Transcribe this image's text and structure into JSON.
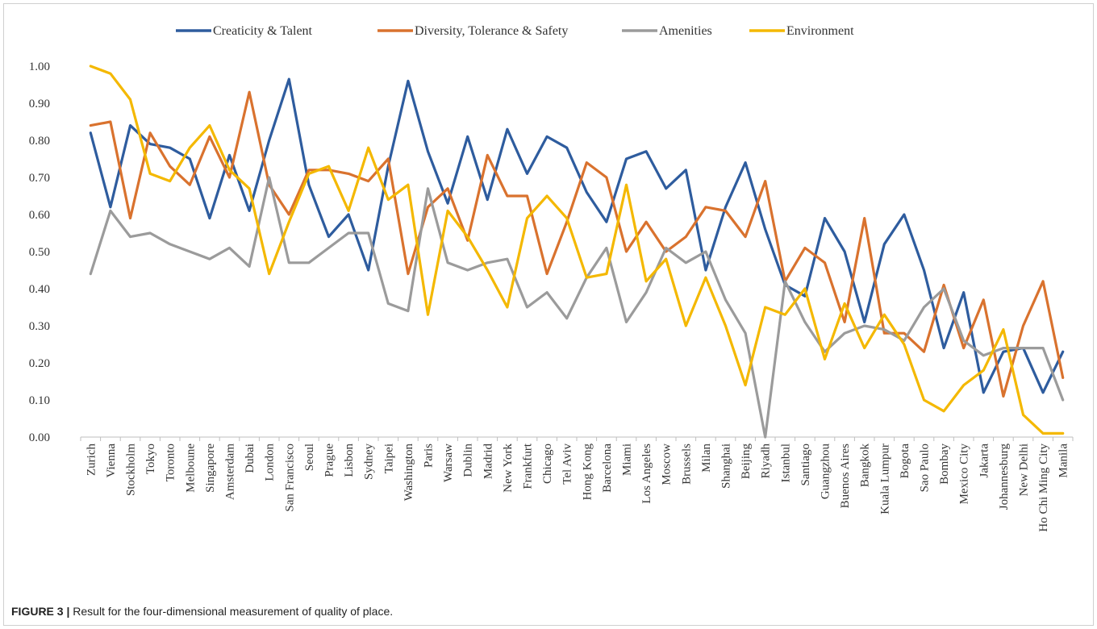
{
  "caption": {
    "label": "FIGURE 3 |",
    "text": " Result for the four-dimensional measurement of quality of place."
  },
  "chart_data": {
    "type": "line",
    "title": "",
    "xlabel": "",
    "ylabel": "",
    "ylim": [
      0,
      1
    ],
    "yticks": [
      "0.00",
      "0.10",
      "0.20",
      "0.30",
      "0.40",
      "0.50",
      "0.60",
      "0.70",
      "0.80",
      "0.90",
      "1.00"
    ],
    "grid": false,
    "legend_position": "top",
    "categories": [
      "Zurich",
      "Vienna",
      "Stockholm",
      "Tokyo",
      "Toronto",
      "Melboune",
      "Singapore",
      "Amsterdam",
      "Dubai",
      "London",
      "San Francisco",
      "Seoul",
      "Prague",
      "Lisbon",
      "Sydney",
      "Taipei",
      "Washington",
      "Paris",
      "Warsaw",
      "Dublin",
      "Madrid",
      "New York",
      "Frankfurt",
      "Chicago",
      "Tel Aviv",
      "Hong Kong",
      "Barcelona",
      "Miami",
      "Los Angeles",
      "Moscow",
      "Brussels",
      "Milan",
      "Shanghai",
      "Beijing",
      "Riyadh",
      "Istanbul",
      "Santiago",
      "Guangzhou",
      "Buenos Aires",
      "Bangkok",
      "Kuala Lumpur",
      "Bogota",
      "Sao Paulo",
      "Bombay",
      "Mexico City",
      "Jakarta",
      "Johannesburg",
      "New Delhi",
      "Ho Chi Ming City",
      "Manila"
    ],
    "series": [
      {
        "name": "Creaticity & Talent",
        "color": "#2e5c9e",
        "values": [
          0.82,
          0.62,
          0.84,
          0.79,
          0.78,
          0.75,
          0.59,
          0.76,
          0.61,
          0.8,
          0.965,
          0.68,
          0.54,
          0.6,
          0.45,
          0.73,
          0.96,
          0.77,
          0.63,
          0.81,
          0.64,
          0.83,
          0.71,
          0.81,
          0.78,
          0.66,
          0.58,
          0.75,
          0.77,
          0.67,
          0.72,
          0.45,
          0.62,
          0.74,
          0.56,
          0.41,
          0.38,
          0.59,
          0.5,
          0.31,
          0.52,
          0.6,
          0.45,
          0.24,
          0.39,
          0.12,
          0.23,
          0.24,
          0.12,
          0.23
        ]
      },
      {
        "name": "Diversity, Tolerance & Safety",
        "color": "#d9722e",
        "values": [
          0.84,
          0.85,
          0.59,
          0.82,
          0.73,
          0.68,
          0.81,
          0.7,
          0.93,
          0.68,
          0.6,
          0.72,
          0.72,
          0.71,
          0.69,
          0.75,
          0.44,
          0.62,
          0.67,
          0.53,
          0.76,
          0.65,
          0.65,
          0.44,
          0.58,
          0.74,
          0.7,
          0.5,
          0.58,
          0.5,
          0.54,
          0.62,
          0.61,
          0.54,
          0.69,
          0.42,
          0.51,
          0.47,
          0.31,
          0.59,
          0.28,
          0.28,
          0.23,
          0.41,
          0.24,
          0.37,
          0.11,
          0.3,
          0.42,
          0.16
        ]
      },
      {
        "name": "Amenities",
        "color": "#9b9b9b",
        "values": [
          0.44,
          0.61,
          0.54,
          0.55,
          0.52,
          0.5,
          0.48,
          0.51,
          0.46,
          0.7,
          0.47,
          0.47,
          0.51,
          0.55,
          0.55,
          0.36,
          0.34,
          0.67,
          0.47,
          0.45,
          0.47,
          0.48,
          0.35,
          0.39,
          0.32,
          0.43,
          0.51,
          0.31,
          0.39,
          0.51,
          0.47,
          0.5,
          0.37,
          0.28,
          0.0,
          0.42,
          0.31,
          0.23,
          0.28,
          0.3,
          0.29,
          0.26,
          0.35,
          0.4,
          0.26,
          0.22,
          0.24,
          0.24,
          0.24,
          0.1
        ]
      },
      {
        "name": "Environment",
        "color": "#f4b800",
        "values": [
          1.0,
          0.98,
          0.91,
          0.71,
          0.69,
          0.78,
          0.84,
          0.72,
          0.67,
          0.44,
          0.58,
          0.71,
          0.73,
          0.61,
          0.78,
          0.64,
          0.68,
          0.33,
          0.61,
          0.54,
          0.45,
          0.35,
          0.59,
          0.65,
          0.59,
          0.43,
          0.44,
          0.68,
          0.42,
          0.48,
          0.3,
          0.43,
          0.3,
          0.14,
          0.35,
          0.33,
          0.4,
          0.21,
          0.36,
          0.24,
          0.33,
          0.25,
          0.1,
          0.07,
          0.14,
          0.18,
          0.29,
          0.06,
          0.01,
          0.01
        ]
      }
    ]
  }
}
